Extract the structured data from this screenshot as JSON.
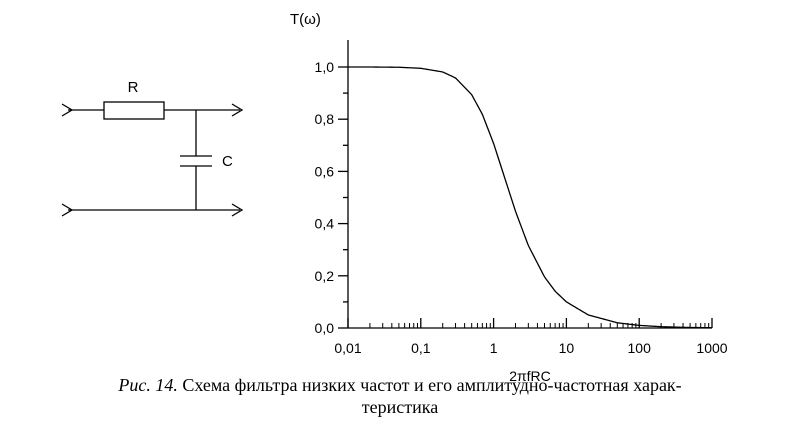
{
  "circuit": {
    "resistor_label": "R",
    "capacitor_label": "C"
  },
  "chart_data": {
    "type": "line",
    "title": "",
    "ylabel": "T(ω)",
    "xlabel": "2πfRC",
    "x_scale": "log",
    "xlim": [
      0.01,
      1000
    ],
    "ylim": [
      0,
      1.0
    ],
    "x_ticks": [
      "0,01",
      "0,1",
      "1",
      "10",
      "100",
      "1000"
    ],
    "y_ticks": [
      "0,0",
      "0,2",
      "0,4",
      "0,6",
      "0,8",
      "1,0"
    ],
    "grid": false,
    "series": [
      {
        "x": [
          0.01,
          0.02,
          0.05,
          0.1,
          0.2,
          0.3,
          0.5,
          0.7,
          1,
          1.5,
          2,
          3,
          5,
          7,
          10,
          20,
          50,
          100,
          200,
          500,
          1000
        ],
        "y": [
          1.0,
          1.0,
          0.999,
          0.995,
          0.981,
          0.958,
          0.894,
          0.819,
          0.707,
          0.555,
          0.447,
          0.316,
          0.196,
          0.141,
          0.1,
          0.05,
          0.02,
          0.01,
          0.005,
          0.002,
          0.001
        ]
      }
    ]
  },
  "caption": {
    "prefix": "Рис. 14.",
    "line1": " Схема фильтра низких частот и его амплитудно-частотная харак-",
    "line2": "теристика"
  }
}
